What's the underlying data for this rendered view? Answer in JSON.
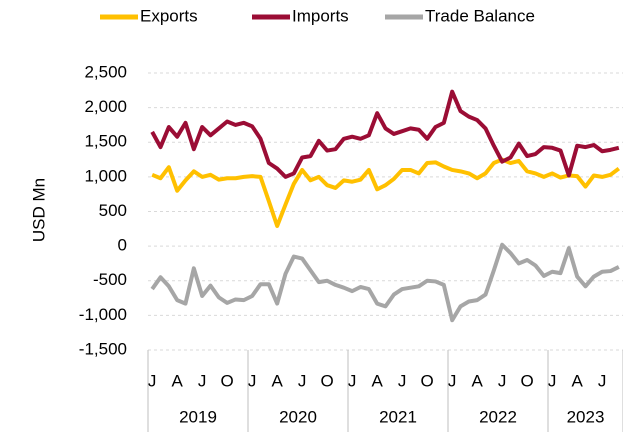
{
  "chart_data": {
    "type": "line",
    "ylabel": "USD Mn",
    "categories": [
      "J",
      null,
      null,
      "A",
      null,
      null,
      "J",
      null,
      null,
      "O",
      null,
      null,
      "J",
      null,
      null,
      "A",
      null,
      null,
      "J",
      null,
      null,
      "O",
      null,
      null,
      "J",
      null,
      null,
      "A",
      null,
      null,
      "J",
      null,
      null,
      "O",
      null,
      null,
      "J",
      null,
      null,
      "A",
      null,
      null,
      "J",
      null,
      null,
      "O",
      null,
      null,
      "J",
      null,
      null,
      "A",
      null,
      null,
      "J",
      null,
      null
    ],
    "years": [
      "2019",
      "2020",
      "2021",
      "2022",
      "2023"
    ],
    "series": [
      {
        "name": "Exports",
        "color": "#ffc000",
        "values": [
          1030,
          980,
          1140,
          800,
          950,
          1080,
          1000,
          1030,
          960,
          980,
          980,
          1000,
          1010,
          1000,
          650,
          290,
          600,
          900,
          1100,
          950,
          1000,
          880,
          840,
          950,
          930,
          960,
          1100,
          820,
          880,
          970,
          1100,
          1100,
          1050,
          1200,
          1210,
          1150,
          1100,
          1080,
          1050,
          980,
          1050,
          1200,
          1250,
          1200,
          1230,
          1080,
          1050,
          1000,
          1050,
          990,
          1020,
          1010,
          860,
          1020,
          1000,
          1030,
          1120
        ]
      },
      {
        "name": "Imports",
        "color": "#9b0d35",
        "values": [
          1650,
          1430,
          1720,
          1580,
          1780,
          1400,
          1720,
          1600,
          1700,
          1800,
          1750,
          1780,
          1730,
          1550,
          1200,
          1120,
          1000,
          1050,
          1280,
          1300,
          1520,
          1380,
          1400,
          1550,
          1580,
          1550,
          1600,
          1920,
          1700,
          1620,
          1660,
          1700,
          1680,
          1550,
          1720,
          1780,
          2230,
          1950,
          1870,
          1820,
          1700,
          1450,
          1220,
          1280,
          1480,
          1300,
          1330,
          1430,
          1420,
          1380,
          1020,
          1450,
          1430,
          1460,
          1370,
          1390,
          1420
        ]
      },
      {
        "name": "Trade Balance",
        "color": "#a6a6a6",
        "values": [
          -620,
          -450,
          -580,
          -780,
          -830,
          -320,
          -720,
          -570,
          -740,
          -820,
          -770,
          -780,
          -720,
          -550,
          -550,
          -830,
          -400,
          -150,
          -180,
          -350,
          -520,
          -500,
          -560,
          -600,
          -650,
          -590,
          -620,
          -830,
          -870,
          -700,
          -620,
          -600,
          -580,
          -500,
          -510,
          -560,
          -1070,
          -870,
          -800,
          -780,
          -700,
          -350,
          20,
          -100,
          -250,
          -200,
          -280,
          -430,
          -370,
          -390,
          -30,
          -440,
          -580,
          -440,
          -370,
          -360,
          -300
        ]
      }
    ],
    "ylim": [
      -1500,
      2500
    ],
    "yticks": [
      {
        "value": -1500,
        "label": "-1,500"
      },
      {
        "value": -1000,
        "label": "-1,000"
      },
      -500,
      0,
      500,
      {
        "value": 1000,
        "label": "1,000"
      },
      {
        "value": 1500,
        "label": "1,500"
      },
      {
        "value": 2000,
        "label": "2,000"
      },
      {
        "value": 2500,
        "label": "2,500"
      }
    ],
    "grid": true
  }
}
